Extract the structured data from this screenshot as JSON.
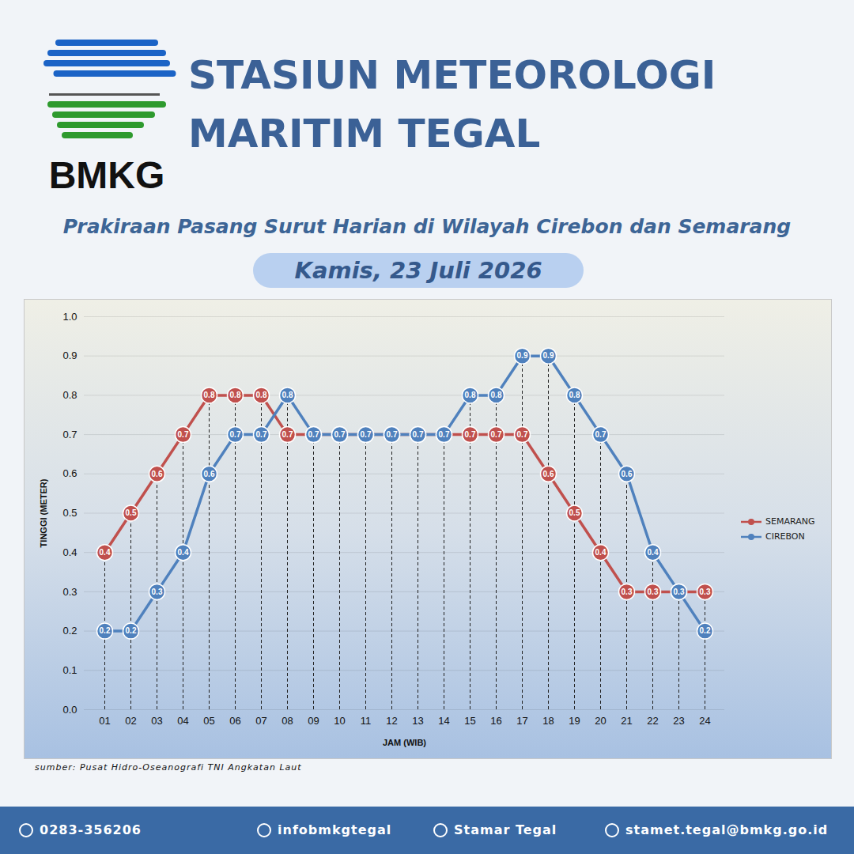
{
  "header": {
    "logo_text": "BMKG",
    "title": [
      "STASIUN METEOROLOGI",
      "MARITIM TEGAL"
    ]
  },
  "chart_data": {
    "type": "line",
    "title": "Prakiraan Pasang Surut Harian di Wilayah Cirebon dan Semarang",
    "subtitle": "Kamis, 23 Juli 2026",
    "x_label": "JAM (WIB)",
    "y_label": "TINGGI (METER)",
    "categories": [
      "01",
      "02",
      "03",
      "04",
      "05",
      "06",
      "07",
      "08",
      "09",
      "10",
      "11",
      "12",
      "13",
      "14",
      "15",
      "16",
      "17",
      "18",
      "19",
      "20",
      "21",
      "22",
      "23",
      "24"
    ],
    "series": [
      {
        "name": "SEMARANG",
        "color": "#c0504d",
        "marker": "circle",
        "line_style": "solid",
        "values": [
          0.4,
          0.5,
          0.6,
          0.7,
          0.8,
          0.8,
          0.8,
          0.7,
          0.7,
          0.7,
          0.7,
          0.7,
          0.7,
          0.7,
          0.7,
          0.7,
          0.7,
          0.6,
          0.5,
          0.4,
          0.3,
          0.3,
          0.3,
          0.3
        ]
      },
      {
        "name": "CIREBON",
        "color": "#4f81bd",
        "marker": "circle",
        "line_style": "solid",
        "values": [
          0.2,
          0.2,
          0.3,
          0.4,
          0.6,
          0.7,
          0.7,
          0.8,
          0.7,
          0.7,
          0.7,
          0.7,
          0.7,
          0.7,
          0.8,
          0.8,
          0.9,
          0.9,
          0.8,
          0.7,
          0.6,
          0.4,
          0.3,
          0.2
        ]
      }
    ],
    "ylim": [
      0,
      1
    ],
    "yticks": [
      {
        "value": 0,
        "label": "0.0"
      },
      0.1,
      0.2,
      0.3,
      0.4,
      0.5,
      0.6,
      0.7,
      0.8,
      0.9,
      {
        "value": 1,
        "label": "1.0"
      }
    ],
    "grid": true,
    "legend": "right",
    "data_labels": true,
    "source": "sumber: Pusat Hidro-Oseanografi TNI Angkatan Laut"
  },
  "footer": {
    "phone": "0283-356206",
    "social": "infobmkgtegal",
    "youtube": "Stamar Tegal",
    "email": "stamet.tegal@bmkg.go.id"
  }
}
